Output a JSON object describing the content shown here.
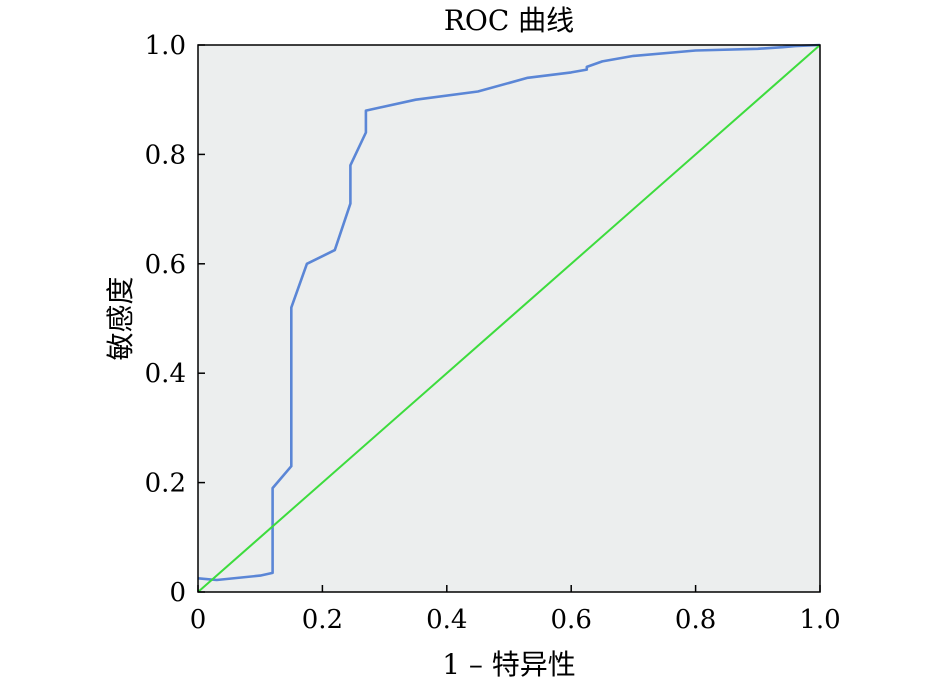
{
  "chart_data": {
    "type": "line",
    "title": "ROC 曲线",
    "xlabel": "1 – 特异性",
    "ylabel": "敏感度",
    "xlim": [
      0,
      1
    ],
    "ylim": [
      0,
      1
    ],
    "x_ticks": [
      0,
      0.2,
      0.4,
      0.6,
      0.8,
      1.0
    ],
    "x_tick_labels": [
      "0",
      "0.2",
      "0.4",
      "0.6",
      "0.8",
      "1.0"
    ],
    "y_ticks": [
      0,
      0.2,
      0.4,
      0.6,
      0.8,
      1.0
    ],
    "y_tick_labels": [
      "0",
      "0.2",
      "0.4",
      "0.6",
      "0.8",
      "1.0"
    ],
    "grid": false,
    "background": "#eceeee",
    "series": [
      {
        "color": "#5b86d6",
        "x": [
          0,
          0.03,
          0.1,
          0.12,
          0.12,
          0.12,
          0.15,
          0.15,
          0.15,
          0.175,
          0.22,
          0.245,
          0.245,
          0.27,
          0.27,
          0.35,
          0.45,
          0.53,
          0.6,
          0.625,
          0.625,
          0.65,
          0.7,
          0.8,
          0.9,
          0.94,
          0.96,
          1.0
        ],
        "y": [
          0.025,
          0.022,
          0.03,
          0.035,
          0.04,
          0.19,
          0.23,
          0.4,
          0.52,
          0.6,
          0.625,
          0.71,
          0.78,
          0.84,
          0.88,
          0.9,
          0.915,
          0.94,
          0.95,
          0.955,
          0.96,
          0.97,
          0.98,
          0.99,
          0.993,
          0.996,
          0.998,
          1.0
        ]
      },
      {
        "color": "#3ddc3d",
        "x": [
          0,
          1
        ],
        "y": [
          0,
          1
        ]
      }
    ]
  }
}
